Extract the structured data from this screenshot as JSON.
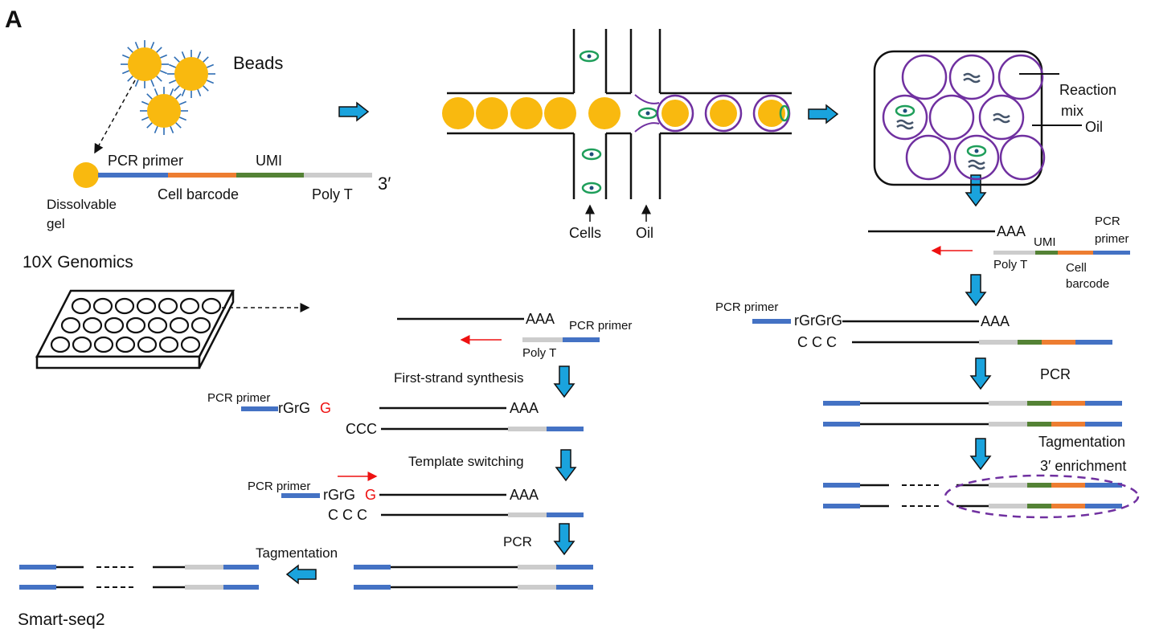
{
  "panel_label": "A",
  "colors": {
    "bead": "#f9b90f",
    "spike": "#2e6db4",
    "pcr_primer": "#4472c4",
    "cell_barcode": "#ed7d31",
    "umi": "#548235",
    "poly_t": "#cccccc",
    "arrow": "#1aa3dd",
    "droplet": "#7030a0",
    "cell": "#1e9e5a",
    "red": "#ee1111"
  },
  "tenx": {
    "beads_label": "Beads",
    "segments": [
      "PCR primer",
      "Cell barcode",
      "UMI",
      "Poly T"
    ],
    "three_prime": "3′",
    "gel_label_1": "Dissolvable",
    "gel_label_2": "gel",
    "method_name": "10X Genomics"
  },
  "microfluidic": {
    "cells_label": "Cells",
    "oil_label": "Oil"
  },
  "emulsion": {
    "reaction_label_1": "Reaction",
    "reaction_label_2": "mix",
    "oil_label": "Oil"
  },
  "tenx_steps": {
    "aaa": "AAA",
    "umi": "UMI",
    "pcr_primer_1": "PCR",
    "pcr_primer_2": "primer",
    "poly_t": "Poly T",
    "cell_barcode_1": "Cell",
    "cell_barcode_2": "barcode",
    "pcr_primer": "PCR primer",
    "rgrgrg": "rGrGrG",
    "ccc": "C  C C",
    "pcr": "PCR",
    "tagmentation": "Tagmentation",
    "enrichment": "3′ enrichment"
  },
  "smartseq": {
    "aaa": "AAA",
    "pcr_primer": "PCR primer",
    "poly_t": "Poly T",
    "first_strand": "First-strand synthesis",
    "rgrg": "rGrG ",
    "g": "G",
    "ccc": "CCC",
    "template_switching": "Template switching",
    "ccc_spaced": "C  C C",
    "pcr": "PCR",
    "tagmentation": "Tagmentation",
    "method_name": "Smart-seq2"
  }
}
